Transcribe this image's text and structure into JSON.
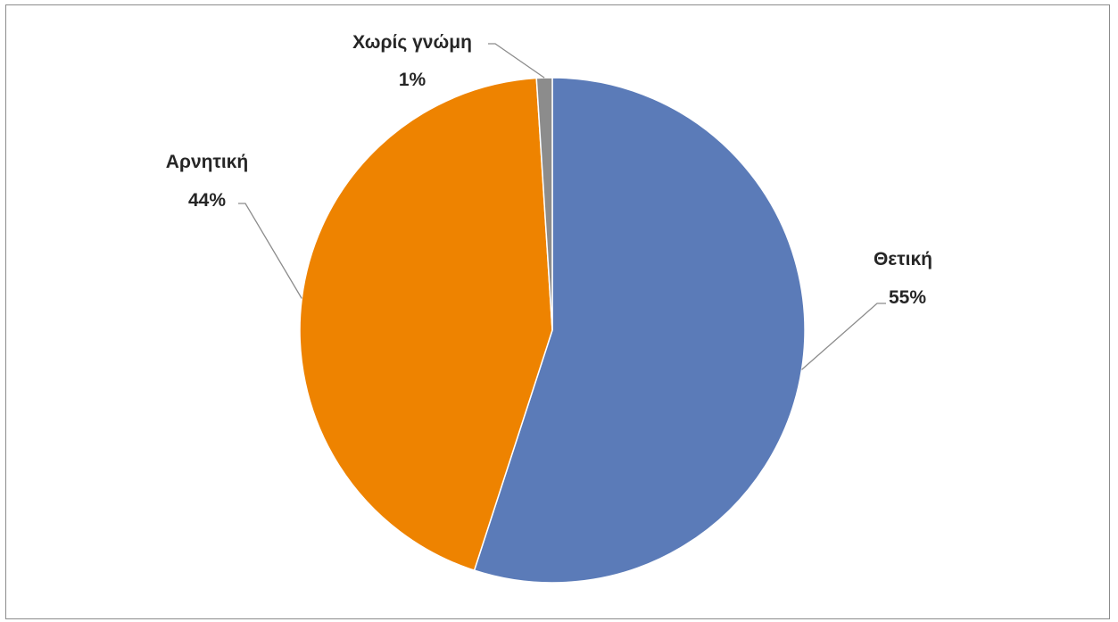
{
  "chart_data": {
    "type": "pie",
    "title": "",
    "categories": [
      "Θετική",
      "Αρνητική",
      "Χωρίς γνώμη"
    ],
    "values": [
      55,
      44,
      1
    ],
    "value_labels": [
      "55%",
      "44%",
      "1%"
    ],
    "colors": [
      "#5b7bb8",
      "#ee8300",
      "#8c8c8c"
    ],
    "start_angle_deg": 0,
    "direction": "clockwise",
    "legend": "none",
    "data_labels": "outside with leader lines"
  }
}
